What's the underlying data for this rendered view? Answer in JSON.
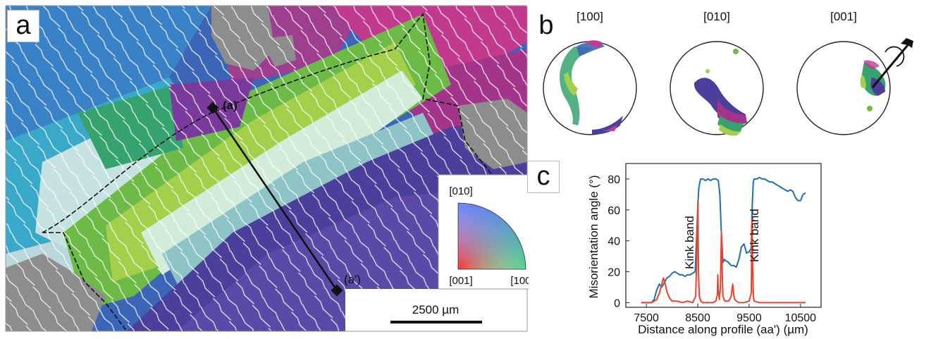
{
  "panel_a": {
    "label": "a",
    "point_a": "(a)",
    "point_a_prime": "(a')",
    "scale_bar": "2500 µm",
    "ipf_key": {
      "top": "[010]",
      "bottom_left": "[001]",
      "bottom_right": "[100]"
    }
  },
  "panel_b": {
    "label": "b",
    "pole_figures": [
      {
        "title": "[100]"
      },
      {
        "title": "[010]"
      },
      {
        "title": "[001]"
      }
    ]
  },
  "panel_c": {
    "label": "c",
    "annotations": [
      "Kink band",
      "Kink band"
    ]
  },
  "colors": {
    "blue_series": "#1f6fb4",
    "red_series": "#e8452a"
  },
  "chart_data": {
    "type": "line",
    "xlabel": "Distance along profile (aa') (µm)",
    "ylabel": "Misorientation angle (°)",
    "xlim": [
      7100,
      10900
    ],
    "ylim": [
      -3,
      90
    ],
    "xticks": [
      "7500",
      "8500",
      "9500",
      "10500"
    ],
    "xtick_values": [
      7500,
      8500,
      9500,
      10500
    ],
    "yticks": [
      "0",
      "20",
      "40",
      "60",
      "80"
    ],
    "ytick_values": [
      0,
      20,
      40,
      60,
      80
    ],
    "series": [
      {
        "color": "#1f6fb4",
        "x": [
          7400,
          7500,
          7600,
          7650,
          7700,
          7750,
          7800,
          7850,
          7900,
          7950,
          8000,
          8050,
          8100,
          8150,
          8200,
          8250,
          8300,
          8350,
          8400,
          8450,
          8500,
          8520,
          8540,
          8560,
          8600,
          8650,
          8700,
          8750,
          8800,
          8850,
          8900,
          8930,
          8960,
          8990,
          9020,
          9050,
          9100,
          9150,
          9200,
          9250,
          9300,
          9350,
          9400,
          9450,
          9500,
          9540,
          9560,
          9580,
          9600,
          9650,
          9700,
          9750,
          9800,
          9850,
          9900,
          9950,
          10000,
          10050,
          10100,
          10150,
          10200,
          10250,
          10300,
          10350,
          10400,
          10450,
          10500,
          10550,
          10600
        ],
        "y": [
          0,
          0,
          0,
          2,
          8,
          12,
          10,
          13,
          16,
          17,
          19,
          20,
          19,
          18,
          18,
          17,
          18,
          18,
          19,
          20,
          62,
          74,
          78,
          80,
          80,
          79,
          80,
          79,
          80,
          80,
          79,
          70,
          44,
          26,
          28,
          27,
          26,
          24,
          24,
          23,
          28,
          36,
          38,
          32,
          33,
          35,
          62,
          78,
          80,
          80,
          81,
          80,
          80,
          79,
          78,
          78,
          77,
          76,
          75,
          74,
          73,
          72,
          73,
          72,
          68,
          66,
          66,
          70,
          71
        ]
      },
      {
        "color": "#e8452a",
        "x": [
          7400,
          7500,
          7600,
          7700,
          7750,
          7800,
          7830,
          7860,
          7900,
          7950,
          8000,
          8100,
          8200,
          8300,
          8400,
          8460,
          8480,
          8500,
          8515,
          8530,
          8560,
          8600,
          8700,
          8800,
          8850,
          8880,
          8890,
          8900,
          8920,
          8940,
          8960,
          8975,
          8990,
          9010,
          9030,
          9100,
          9150,
          9180,
          9200,
          9220,
          9250,
          9300,
          9400,
          9500,
          9540,
          9555,
          9570,
          9585,
          9600,
          9700,
          9800,
          10000,
          10200,
          10400,
          10600
        ],
        "y": [
          0,
          0,
          0,
          2,
          6,
          12,
          16,
          13,
          7,
          3,
          1,
          1,
          0,
          1,
          0,
          4,
          30,
          65,
          20,
          4,
          1,
          0,
          0,
          0,
          1,
          5,
          18,
          8,
          2,
          10,
          46,
          20,
          4,
          2,
          1,
          1,
          4,
          12,
          5,
          2,
          1,
          0,
          0,
          1,
          6,
          54,
          18,
          3,
          1,
          0,
          0,
          0,
          0,
          0,
          0
        ]
      }
    ]
  }
}
